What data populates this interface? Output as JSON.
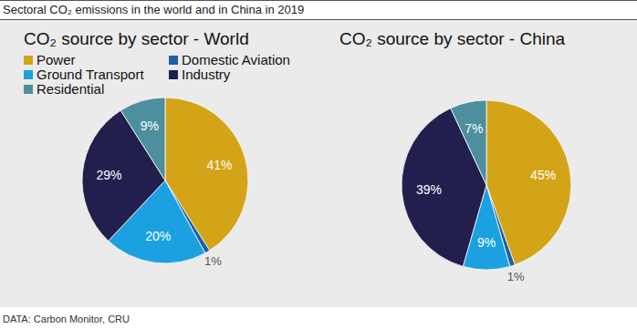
{
  "title": "Sectoral CO₂ emissions in the world and in China in 2019",
  "source": "DATA: Carbon Monitor, CRU",
  "chart_data": [
    {
      "type": "pie",
      "title": "CO₂ source by sector - World",
      "categories": [
        "Power",
        "Domestic Aviation",
        "Ground Transport",
        "Industry",
        "Residential"
      ],
      "values": [
        41,
        1,
        20,
        29,
        9
      ],
      "value_labels": [
        "41%",
        "1%",
        "20%",
        "29%",
        "9%"
      ],
      "colors": [
        "#d4a418",
        "#1f5fa8",
        "#1ba1e2",
        "#221f4f",
        "#4d8f9e"
      ],
      "data_labels": true,
      "legend": "top"
    },
    {
      "type": "pie",
      "title": "CO₂ source by sector - China",
      "categories": [
        "Power",
        "Domestic Aviation",
        "Ground Transport",
        "Industry",
        "Residential"
      ],
      "values": [
        45,
        1,
        9,
        39,
        7
      ],
      "value_labels": [
        "45%",
        "1%",
        "9%",
        "39%",
        "7%"
      ],
      "colors": [
        "#d4a418",
        "#1f5fa8",
        "#1ba1e2",
        "#221f4f",
        "#4d8f9e"
      ],
      "data_labels": true
    }
  ]
}
